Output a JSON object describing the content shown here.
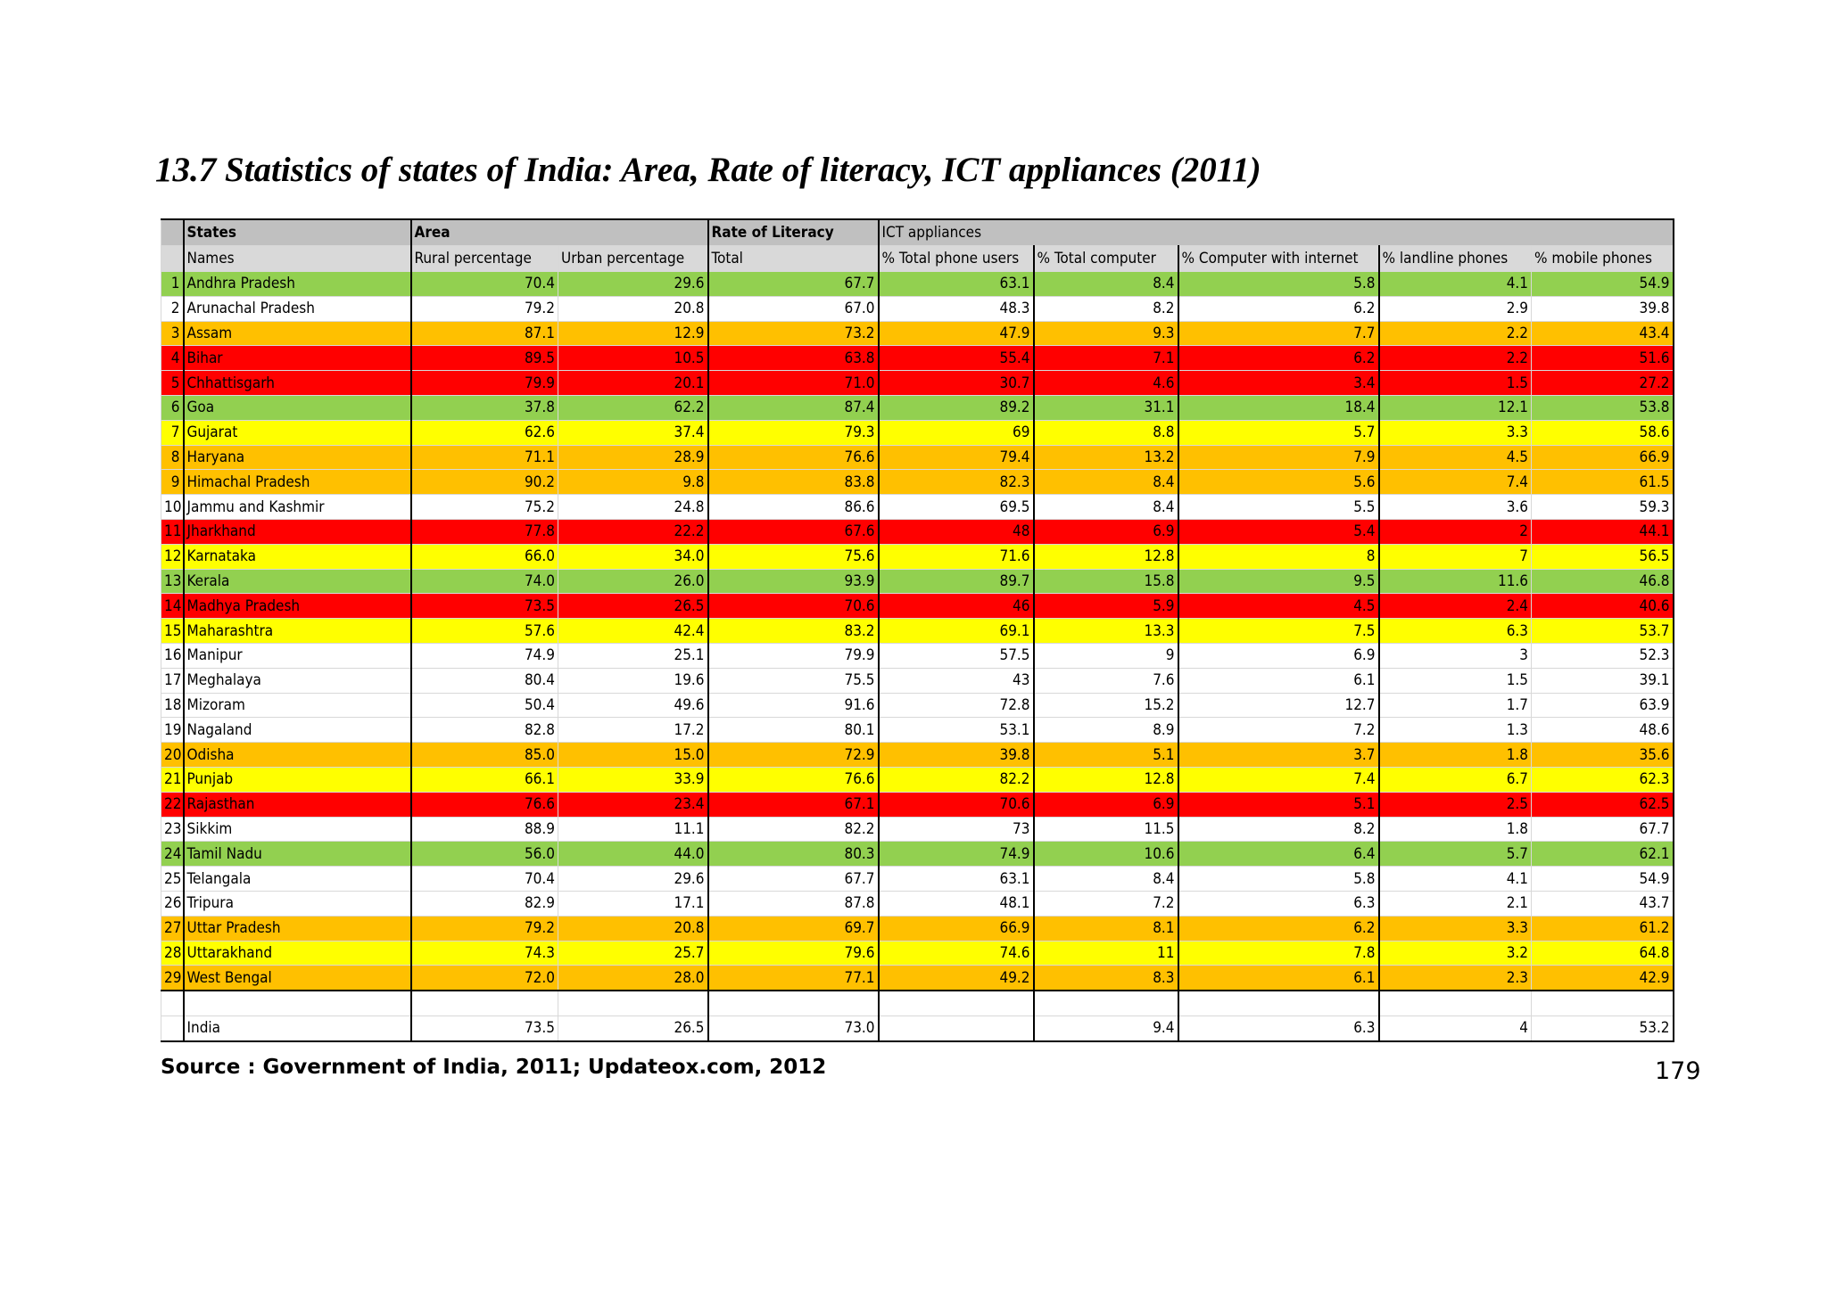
{
  "header": {
    "title": "13.7 Statistics of states of India: Area, Rate of literacy, ICT appliances (2011)"
  },
  "table": {
    "group_headers": [
      "States",
      "Area",
      "Rate of Literacy",
      "ICT appliances"
    ],
    "column_headers": [
      "Names",
      "Rural percentage",
      "Urban percentage",
      "Total",
      "% Total phone users",
      "% Total computer",
      "% Computer with internet",
      "% landline phones",
      "% mobile phones"
    ],
    "rows": [
      {
        "no": "1",
        "name": "Andhra Pradesh",
        "fill": "#92d050",
        "values": [
          "70.4",
          "29.6",
          "67.7",
          "63.1",
          "8.4",
          "5.8",
          "4.1",
          "54.9"
        ]
      },
      {
        "no": "2",
        "name": "Arunachal Pradesh",
        "fill": "#ffffff",
        "values": [
          "79.2",
          "20.8",
          "67.0",
          "48.3",
          "8.2",
          "6.2",
          "2.9",
          "39.8"
        ]
      },
      {
        "no": "3",
        "name": "Assam",
        "fill": "#ffc000",
        "values": [
          "87.1",
          "12.9",
          "73.2",
          "47.9",
          "9.3",
          "7.7",
          "2.2",
          "43.4"
        ]
      },
      {
        "no": "4",
        "name": "Bihar",
        "fill": "#ff0000",
        "values": [
          "89.5",
          "10.5",
          "63.8",
          "55.4",
          "7.1",
          "6.2",
          "2.2",
          "51.6"
        ]
      },
      {
        "no": "5",
        "name": "Chhattisgarh",
        "fill": "#ff0000",
        "values": [
          "79.9",
          "20.1",
          "71.0",
          "30.7",
          "4.6",
          "3.4",
          "1.5",
          "27.2"
        ]
      },
      {
        "no": "6",
        "name": "Goa",
        "fill": "#92d050",
        "values": [
          "37.8",
          "62.2",
          "87.4",
          "89.2",
          "31.1",
          "18.4",
          "12.1",
          "53.8"
        ]
      },
      {
        "no": "7",
        "name": "Gujarat",
        "fill": "#ffff00",
        "values": [
          "62.6",
          "37.4",
          "79.3",
          "69",
          "8.8",
          "5.7",
          "3.3",
          "58.6"
        ]
      },
      {
        "no": "8",
        "name": "Haryana",
        "fill": "#ffc000",
        "values": [
          "71.1",
          "28.9",
          "76.6",
          "79.4",
          "13.2",
          "7.9",
          "4.5",
          "66.9"
        ]
      },
      {
        "no": "9",
        "name": "Himachal Pradesh",
        "fill": "#ffc000",
        "values": [
          "90.2",
          "9.8",
          "83.8",
          "82.3",
          "8.4",
          "5.6",
          "7.4",
          "61.5"
        ]
      },
      {
        "no": "10",
        "name": "Jammu and Kashmir",
        "fill": "#ffffff",
        "values": [
          "75.2",
          "24.8",
          "86.6",
          "69.5",
          "8.4",
          "5.5",
          "3.6",
          "59.3"
        ]
      },
      {
        "no": "11",
        "name": "Jharkhand",
        "fill": "#ff0000",
        "values": [
          "77.8",
          "22.2",
          "67.6",
          "48",
          "6.9",
          "5.4",
          "2",
          "44.1"
        ]
      },
      {
        "no": "12",
        "name": "Karnataka",
        "fill": "#ffff00",
        "values": [
          "66.0",
          "34.0",
          "75.6",
          "71.6",
          "12.8",
          "8",
          "7",
          "56.5"
        ]
      },
      {
        "no": "13",
        "name": "Kerala",
        "fill": "#92d050",
        "values": [
          "74.0",
          "26.0",
          "93.9",
          "89.7",
          "15.8",
          "9.5",
          "11.6",
          "46.8"
        ]
      },
      {
        "no": "14",
        "name": "Madhya Pradesh",
        "fill": "#ff0000",
        "values": [
          "73.5",
          "26.5",
          "70.6",
          "46",
          "5.9",
          "4.5",
          "2.4",
          "40.6"
        ]
      },
      {
        "no": "15",
        "name": "Maharashtra",
        "fill": "#ffff00",
        "values": [
          "57.6",
          "42.4",
          "83.2",
          "69.1",
          "13.3",
          "7.5",
          "6.3",
          "53.7"
        ]
      },
      {
        "no": "16",
        "name": "Manipur",
        "fill": "#ffffff",
        "values": [
          "74.9",
          "25.1",
          "79.9",
          "57.5",
          "9",
          "6.9",
          "3",
          "52.3"
        ]
      },
      {
        "no": "17",
        "name": "Meghalaya",
        "fill": "#ffffff",
        "values": [
          "80.4",
          "19.6",
          "75.5",
          "43",
          "7.6",
          "6.1",
          "1.5",
          "39.1"
        ]
      },
      {
        "no": "18",
        "name": "Mizoram",
        "fill": "#ffffff",
        "values": [
          "50.4",
          "49.6",
          "91.6",
          "72.8",
          "15.2",
          "12.7",
          "1.7",
          "63.9"
        ]
      },
      {
        "no": "19",
        "name": "Nagaland",
        "fill": "#ffffff",
        "values": [
          "82.8",
          "17.2",
          "80.1",
          "53.1",
          "8.9",
          "7.2",
          "1.3",
          "48.6"
        ]
      },
      {
        "no": "20",
        "name": "Odisha",
        "fill": "#ffc000",
        "values": [
          "85.0",
          "15.0",
          "72.9",
          "39.8",
          "5.1",
          "3.7",
          "1.8",
          "35.6"
        ]
      },
      {
        "no": "21",
        "name": "Punjab",
        "fill": "#ffff00",
        "values": [
          "66.1",
          "33.9",
          "76.6",
          "82.2",
          "12.8",
          "7.4",
          "6.7",
          "62.3"
        ]
      },
      {
        "no": "22",
        "name": "Rajasthan",
        "fill": "#ff0000",
        "values": [
          "76.6",
          "23.4",
          "67.1",
          "70.6",
          "6.9",
          "5.1",
          "2.5",
          "62.5"
        ]
      },
      {
        "no": "23",
        "name": "Sikkim",
        "fill": "#ffffff",
        "values": [
          "88.9",
          "11.1",
          "82.2",
          "73",
          "11.5",
          "8.2",
          "1.8",
          "67.7"
        ]
      },
      {
        "no": "24",
        "name": "Tamil Nadu",
        "fill": "#92d050",
        "values": [
          "56.0",
          "44.0",
          "80.3",
          "74.9",
          "10.6",
          "6.4",
          "5.7",
          "62.1"
        ]
      },
      {
        "no": "25",
        "name": "Telangala",
        "fill": "#ffffff",
        "values": [
          "70.4",
          "29.6",
          "67.7",
          "63.1",
          "8.4",
          "5.8",
          "4.1",
          "54.9"
        ]
      },
      {
        "no": "26",
        "name": "Tripura",
        "fill": "#ffffff",
        "values": [
          "82.9",
          "17.1",
          "87.8",
          "48.1",
          "7.2",
          "6.3",
          "2.1",
          "43.7"
        ]
      },
      {
        "no": "27",
        "name": "Uttar Pradesh",
        "fill": "#ffc000",
        "values": [
          "79.2",
          "20.8",
          "69.7",
          "66.9",
          "8.1",
          "6.2",
          "3.3",
          "61.2"
        ]
      },
      {
        "no": "28",
        "name": "Uttarakhand",
        "fill": "#ffff00",
        "values": [
          "74.3",
          "25.7",
          "79.6",
          "74.6",
          "11",
          "7.8",
          "3.2",
          "64.8"
        ]
      },
      {
        "no": "29",
        "name": "West Bengal",
        "fill": "#ffc000",
        "values": [
          "72.0",
          "28.0",
          "77.1",
          "49.2",
          "8.3",
          "6.1",
          "2.3",
          "42.9"
        ]
      }
    ],
    "total": {
      "name": "India",
      "values": [
        "73.5",
        "26.5",
        "73.0",
        null,
        "9.4",
        "6.3",
        "4",
        "53.2"
      ]
    }
  },
  "footer": {
    "source": "Source : Government of India, 2011; Updateox.com, 2012",
    "page": "179"
  }
}
